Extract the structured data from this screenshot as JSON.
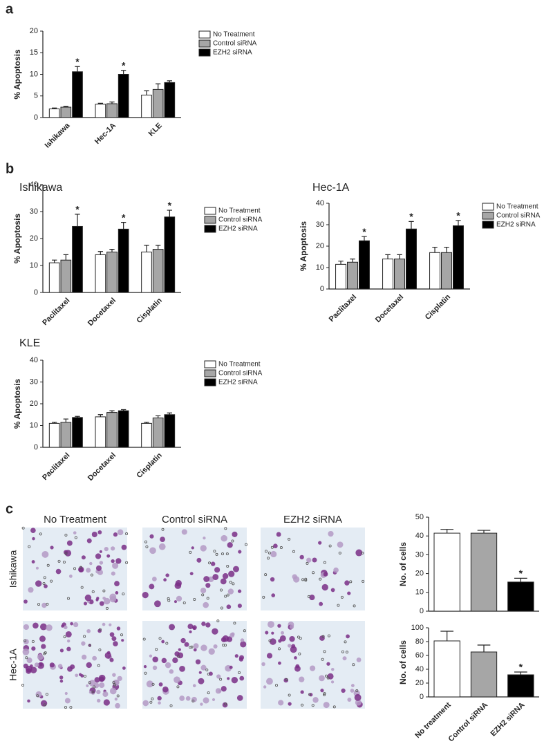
{
  "panel_labels": [
    "a",
    "b",
    "c"
  ],
  "chart_data": [
    {
      "type": "bar",
      "ylabel": "% Apoptosis",
      "categories": [
        "Ishikawa",
        "Hec-1A",
        "KLE"
      ],
      "series": [
        {
          "name": "No Treatment",
          "color": "#ffffff",
          "values": [
            2,
            3.1,
            5.2
          ],
          "errors": [
            0.2,
            0.2,
            1.0
          ],
          "significance": [
            null,
            null,
            null
          ]
        },
        {
          "name": "Control siRNA",
          "color": "#a6a6a6",
          "values": [
            2.4,
            3.2,
            6.5
          ],
          "errors": [
            0.2,
            0.4,
            1.3
          ],
          "significance": [
            null,
            null,
            null
          ]
        },
        {
          "name": "EZH2 siRNA",
          "color": "#000000",
          "values": [
            10.6,
            10,
            8.1
          ],
          "errors": [
            1.2,
            0.9,
            0.4
          ],
          "significance": [
            "*",
            "*",
            null
          ]
        }
      ],
      "ylim": [
        0,
        20
      ],
      "yticks": [
        0,
        5,
        10,
        15,
        20
      ]
    },
    {
      "type": "bar",
      "title": "Ishikawa",
      "ylabel": "% Apoptosis",
      "categories": [
        "Paclitaxel",
        "Docetaxel",
        "Cisplatin"
      ],
      "series": [
        {
          "name": "No Treatment",
          "color": "#ffffff",
          "values": [
            11,
            14,
            15
          ],
          "errors": [
            1,
            1.2,
            2.5
          ],
          "significance": [
            null,
            null,
            null
          ]
        },
        {
          "name": "Control siRNA",
          "color": "#a6a6a6",
          "values": [
            12,
            15,
            16
          ],
          "errors": [
            2,
            1,
            1.5
          ],
          "significance": [
            null,
            null,
            null
          ]
        },
        {
          "name": "EZH2 siRNA",
          "color": "#000000",
          "values": [
            24.5,
            23.5,
            28
          ],
          "errors": [
            4.5,
            2.5,
            2.5
          ],
          "significance": [
            "*",
            "*",
            "*"
          ]
        }
      ],
      "ylim": [
        0,
        40
      ],
      "yticks": [
        0,
        10,
        20,
        30,
        40
      ]
    },
    {
      "type": "bar",
      "title": "Hec-1A",
      "ylabel": "% Apoptosis",
      "categories": [
        "Paclitaxel",
        "Docetaxel",
        "Cisplatin"
      ],
      "series": [
        {
          "name": "No Treatment",
          "color": "#ffffff",
          "values": [
            11.5,
            14,
            17
          ],
          "errors": [
            1.5,
            2,
            2.5
          ],
          "significance": [
            null,
            null,
            null
          ]
        },
        {
          "name": "Control siRNA",
          "color": "#a6a6a6",
          "values": [
            12.5,
            14,
            17
          ],
          "errors": [
            1.5,
            2,
            2.5
          ],
          "significance": [
            null,
            null,
            null
          ]
        },
        {
          "name": "EZH2 siRNA",
          "color": "#000000",
          "values": [
            22.5,
            28,
            29.5
          ],
          "errors": [
            2,
            3.5,
            2.5
          ],
          "significance": [
            "*",
            "*",
            "*"
          ]
        }
      ],
      "ylim": [
        0,
        40
      ],
      "yticks": [
        0,
        10,
        20,
        30,
        40
      ]
    },
    {
      "type": "bar",
      "title": "KLE",
      "ylabel": "% Apoptosis",
      "categories": [
        "Paclitaxel",
        "Docetaxel",
        "Cisplatin"
      ],
      "series": [
        {
          "name": "No Treatment",
          "color": "#ffffff",
          "values": [
            11,
            14,
            11
          ],
          "errors": [
            0.5,
            1,
            0.5
          ],
          "significance": [
            null,
            null,
            null
          ]
        },
        {
          "name": "Control siRNA",
          "color": "#a6a6a6",
          "values": [
            11.5,
            16,
            13.5
          ],
          "errors": [
            1.5,
            0.8,
            1
          ],
          "significance": [
            null,
            null,
            null
          ]
        },
        {
          "name": "EZH2 siRNA",
          "color": "#000000",
          "values": [
            13.7,
            16.8,
            15
          ],
          "errors": [
            0.5,
            0.5,
            0.8
          ],
          "significance": [
            null,
            null,
            null
          ]
        }
      ],
      "ylim": [
        0,
        40
      ],
      "yticks": [
        0,
        10,
        20,
        30,
        40
      ]
    },
    {
      "type": "bar",
      "ylabel": "No. of cells",
      "categories": [
        null,
        null,
        null
      ],
      "values": [
        41.5,
        41.5,
        15.5
      ],
      "errors": [
        2,
        1.5,
        2
      ],
      "colors": [
        "#ffffff",
        "#a6a6a6",
        "#000000"
      ],
      "significance": [
        null,
        null,
        "*"
      ],
      "ylim": [
        0,
        50
      ],
      "yticks": [
        0,
        10,
        20,
        30,
        40,
        50
      ]
    },
    {
      "type": "bar",
      "ylabel": "No. of cells",
      "categories": [
        "No treatment",
        "Control siRNA",
        "EZH2 siRNA"
      ],
      "values": [
        81,
        65,
        32
      ],
      "errors": [
        14,
        10,
        4
      ],
      "colors": [
        "#ffffff",
        "#a6a6a6",
        "#000000"
      ],
      "significance": [
        null,
        null,
        "*"
      ],
      "ylim": [
        0,
        100
      ],
      "yticks": [
        0,
        20,
        40,
        60,
        80,
        100
      ]
    }
  ],
  "micrographs": {
    "columns": [
      "No Treatment",
      "Control siRNA",
      "EZH2 siRNA"
    ],
    "rows": [
      "Ishikawa",
      "Hec-1A"
    ]
  }
}
